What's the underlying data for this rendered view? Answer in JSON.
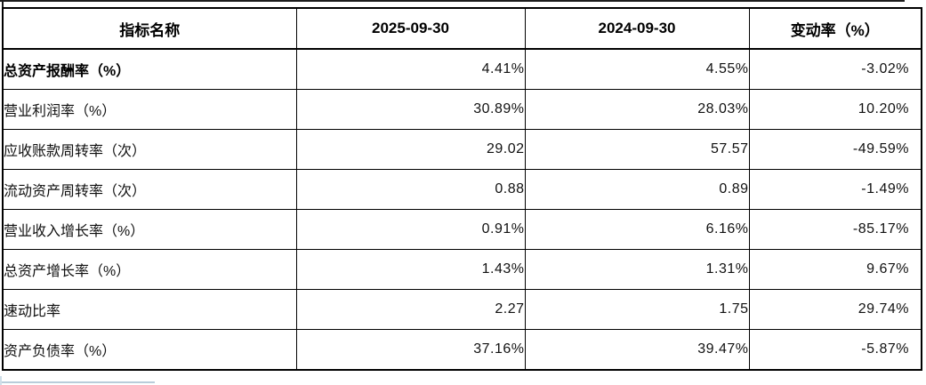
{
  "table": {
    "headers": [
      "指标名称",
      "2025-09-30",
      "2024-09-30",
      "变动率（%）"
    ],
    "rows": [
      {
        "name": "总资产报酬率（%）",
        "values": [
          "4.41%",
          "4.55%",
          "-3.02%"
        ]
      },
      {
        "name": "营业利润率（%）",
        "values": [
          "30.89%",
          "28.03%",
          "10.20%"
        ]
      },
      {
        "name": "应收账款周转率（次）",
        "values": [
          "29.02",
          "57.57",
          "-49.59%"
        ]
      },
      {
        "name": "流动资产周转率（次）",
        "values": [
          "0.88",
          "0.89",
          "-1.49%"
        ]
      },
      {
        "name": "营业收入增长率（%）",
        "values": [
          "0.91%",
          "6.16%",
          "-85.17%"
        ]
      },
      {
        "name": "总资产增长率（%）",
        "values": [
          "1.43%",
          "1.31%",
          "9.67%"
        ]
      },
      {
        "name": "速动比率",
        "values": [
          "2.27",
          "1.75",
          "29.74%"
        ]
      },
      {
        "name": "资产负债率（%）",
        "values": [
          "37.16%",
          "39.47%",
          "-5.87%"
        ]
      }
    ]
  }
}
